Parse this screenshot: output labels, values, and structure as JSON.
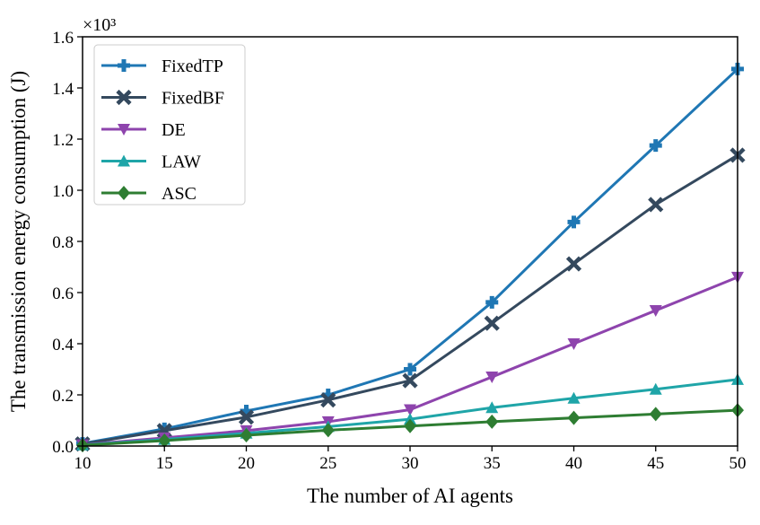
{
  "chart_data": {
    "type": "line",
    "xlabel": "The number of AI agents",
    "ylabel": "The transmission energy consumption (J)",
    "y_multiplier_label": "×10³",
    "x": [
      10,
      15,
      20,
      25,
      30,
      35,
      40,
      45,
      50
    ],
    "xlim": [
      10,
      50
    ],
    "ylim": [
      0,
      1.6
    ],
    "x_ticks": [
      "10",
      "15",
      "20",
      "25",
      "30",
      "35",
      "40",
      "45",
      "50"
    ],
    "y_ticks": [
      "0.0",
      "0.2",
      "0.4",
      "0.6",
      "0.8",
      "1.0",
      "1.2",
      "1.4",
      "1.6"
    ],
    "grid": false,
    "legend_position": "top-left",
    "series": [
      {
        "name": "FixedTP",
        "color": "#1f77b4",
        "marker": "plus",
        "values": [
          0.01,
          0.067,
          0.137,
          0.2,
          0.3,
          0.562,
          0.876,
          1.175,
          1.474
        ]
      },
      {
        "name": "FixedBF",
        "color": "#34495e",
        "marker": "x",
        "values": [
          0.008,
          0.06,
          0.113,
          0.18,
          0.256,
          0.48,
          0.712,
          0.944,
          1.137
        ]
      },
      {
        "name": "DE",
        "color": "#8e44ad",
        "marker": "triangle-down",
        "values": [
          0.005,
          0.032,
          0.06,
          0.095,
          0.142,
          0.27,
          0.4,
          0.53,
          0.66
        ]
      },
      {
        "name": "LAW",
        "color": "#1fa5a8",
        "marker": "triangle-up",
        "values": [
          0.004,
          0.026,
          0.05,
          0.076,
          0.105,
          0.15,
          0.187,
          0.222,
          0.26
        ]
      },
      {
        "name": "ASC",
        "color": "#2e7d32",
        "marker": "diamond",
        "values": [
          0.003,
          0.021,
          0.042,
          0.062,
          0.078,
          0.095,
          0.11,
          0.125,
          0.14
        ]
      }
    ]
  }
}
